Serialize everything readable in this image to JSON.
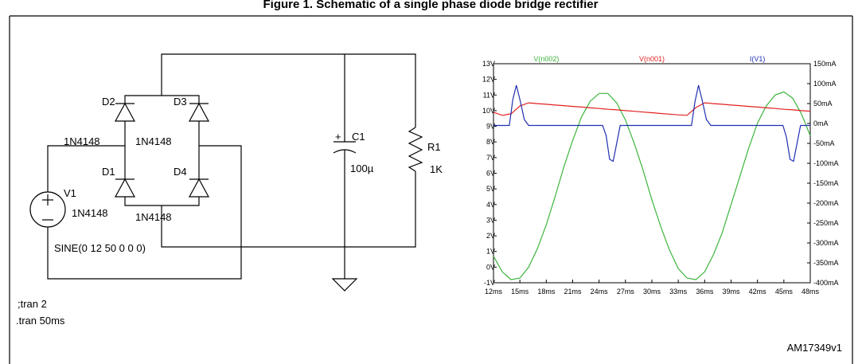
{
  "title": "Figure 1. Schematic of a single phase diode bridge rectifier",
  "schematic": {
    "components": [
      {
        "ref": "D2",
        "model": "1N4148"
      },
      {
        "ref": "D3",
        "model": "1N4148"
      },
      {
        "ref": "D1",
        "model": "1N4148"
      },
      {
        "ref": "D4",
        "model": "1N4148"
      },
      {
        "ref": "V1",
        "value": "SINE(0 12 50 0 0 0)"
      },
      {
        "ref": "C1",
        "value": "100µ"
      },
      {
        "ref": "R1",
        "value": "1K"
      }
    ],
    "directives": [
      ";tran 2",
      ".tran 50ms"
    ]
  },
  "chart_data": {
    "type": "line",
    "xlim": [
      12,
      48
    ],
    "xticks": [
      {
        "value": 12,
        "label": "12ms"
      },
      {
        "value": 15,
        "label": "15ms"
      },
      {
        "value": 18,
        "label": "18ms"
      },
      {
        "value": 21,
        "label": "21ms"
      },
      {
        "value": 24,
        "label": "24ms"
      },
      {
        "value": 27,
        "label": "27ms"
      },
      {
        "value": 30,
        "label": "30ms"
      },
      {
        "value": 33,
        "label": "33ms"
      },
      {
        "value": 36,
        "label": "36ms"
      },
      {
        "value": 39,
        "label": "39ms"
      },
      {
        "value": 42,
        "label": "42ms"
      },
      {
        "value": 45,
        "label": "45ms"
      },
      {
        "value": 48,
        "label": "48ms"
      }
    ],
    "ylim": [
      -1,
      13
    ],
    "yticks": [
      {
        "value": 13,
        "label": "13V"
      },
      {
        "value": 12,
        "label": "12V"
      },
      {
        "value": 11,
        "label": "11V"
      },
      {
        "value": 10,
        "label": "10V"
      },
      {
        "value": 9,
        "label": "9V"
      },
      {
        "value": 8,
        "label": "8V"
      },
      {
        "value": 7,
        "label": "7V"
      },
      {
        "value": 6,
        "label": "6V"
      },
      {
        "value": 5,
        "label": "5V"
      },
      {
        "value": 4,
        "label": "4V"
      },
      {
        "value": 3,
        "label": "3V"
      },
      {
        "value": 2,
        "label": "2V"
      },
      {
        "value": 1,
        "label": "1V"
      },
      {
        "value": 0,
        "label": "0V"
      },
      {
        "value": -1,
        "label": "-1V"
      }
    ],
    "y2lim": [
      -400,
      150
    ],
    "y2ticks": [
      {
        "value": 150,
        "label": "150mA"
      },
      {
        "value": 100,
        "label": "100mA"
      },
      {
        "value": 50,
        "label": "50mA"
      },
      {
        "value": 0,
        "label": "0mA"
      },
      {
        "value": -50,
        "label": "-50mA"
      },
      {
        "value": -100,
        "label": "-100mA"
      },
      {
        "value": -150,
        "label": "-150mA"
      },
      {
        "value": -200,
        "label": "-200mA"
      },
      {
        "value": -250,
        "label": "-250mA"
      },
      {
        "value": -300,
        "label": "-300mA"
      },
      {
        "value": -350,
        "label": "-350mA"
      },
      {
        "value": -400,
        "label": "-400mA"
      }
    ],
    "grid": false,
    "series": [
      {
        "name": "V(n002)",
        "color": "#3cb43c",
        "x": [
          12,
          13,
          14,
          15,
          16,
          17,
          18,
          19,
          20,
          21,
          22,
          23,
          24,
          25,
          26,
          27,
          28,
          29,
          30,
          31,
          32,
          33,
          34,
          35,
          36,
          37,
          38,
          39,
          40,
          41,
          42,
          43,
          44,
          45,
          46,
          47,
          48
        ],
        "values": [
          0.7,
          -0.3,
          -0.8,
          -0.7,
          0.0,
          1.2,
          2.7,
          4.5,
          6.4,
          8.1,
          9.6,
          10.6,
          11.1,
          11.1,
          10.5,
          9.4,
          7.9,
          6.2,
          4.3,
          2.6,
          1.1,
          -0.1,
          -0.7,
          -0.8,
          -0.3,
          0.8,
          2.2,
          4.0,
          5.8,
          7.6,
          9.2,
          10.3,
          11.0,
          11.2,
          10.8,
          9.8,
          8.4
        ]
      },
      {
        "name": "V(n001)",
        "color": "#e02020",
        "x": [
          12,
          13,
          14,
          15,
          16,
          17,
          18,
          19,
          20,
          21,
          22,
          23,
          24,
          25,
          26,
          27,
          28,
          29,
          30,
          31,
          32,
          33,
          34,
          35,
          36,
          37,
          38,
          39,
          40,
          41,
          42,
          43,
          44,
          45,
          46,
          47,
          48
        ],
        "values": [
          9.9,
          9.7,
          9.8,
          10.3,
          10.5,
          10.45,
          10.41,
          10.36,
          10.32,
          10.27,
          10.23,
          10.18,
          10.14,
          10.09,
          10.05,
          10.0,
          9.96,
          9.91,
          9.87,
          9.82,
          9.78,
          9.73,
          9.7,
          10.2,
          10.5,
          10.45,
          10.41,
          10.36,
          10.32,
          10.27,
          10.23,
          10.18,
          10.14,
          10.09,
          10.05,
          10.0,
          9.96
        ]
      },
      {
        "name": "I(V1)",
        "color": "#2030b0",
        "axis": "y2",
        "x": [
          12,
          13.8,
          14.2,
          14.6,
          15.0,
          15.5,
          16.0,
          24.4,
          24.8,
          25.2,
          25.6,
          26.0,
          26.4,
          34.5,
          34.9,
          35.3,
          35.7,
          36.2,
          36.7,
          44.9,
          45.3,
          45.7,
          46.1,
          46.5,
          46.9,
          48
        ],
        "values": [
          -5,
          -5,
          60,
          96,
          60,
          10,
          -5,
          -5,
          -30,
          -90,
          -95,
          -50,
          -5,
          -5,
          55,
          96,
          60,
          10,
          -5,
          -5,
          -35,
          -90,
          -95,
          -50,
          -5,
          -5
        ]
      }
    ]
  },
  "figure_id": "AM17349v1"
}
